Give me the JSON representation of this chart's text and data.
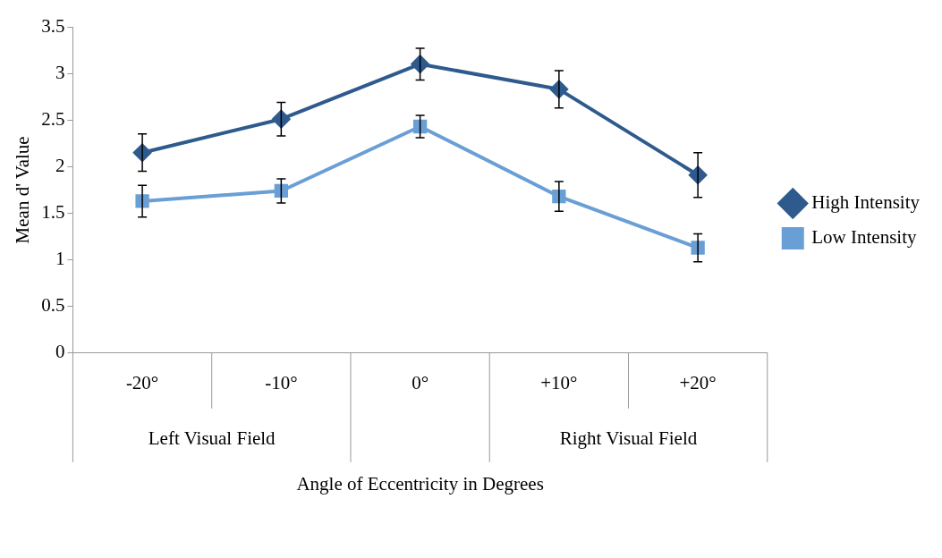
{
  "chart_data": {
    "type": "line",
    "xlabel": "Angle of Eccentricity in Degrees",
    "ylabel": "Mean d' Value",
    "categories": [
      "-20°",
      "-10°",
      "0°",
      "+10°",
      "+20°"
    ],
    "series": [
      {
        "name": "High Intensity",
        "color": "#2e5a8e",
        "marker": "diamond",
        "values": [
          2.15,
          2.51,
          3.1,
          2.83,
          1.91
        ],
        "errors": [
          0.2,
          0.18,
          0.17,
          0.2,
          0.24
        ]
      },
      {
        "name": "Low Intensity",
        "color": "#6a9fd5",
        "marker": "square",
        "values": [
          1.63,
          1.74,
          2.43,
          1.68,
          1.13
        ],
        "errors": [
          0.17,
          0.13,
          0.12,
          0.16,
          0.15
        ]
      }
    ],
    "annotations": [
      "Left Visual Field",
      "Right Visual Field"
    ],
    "ylim": [
      0,
      3.5
    ],
    "yticks": [
      0,
      0.5,
      1,
      1.5,
      2,
      2.5,
      3,
      3.5
    ],
    "grid": false,
    "legend": "right"
  }
}
